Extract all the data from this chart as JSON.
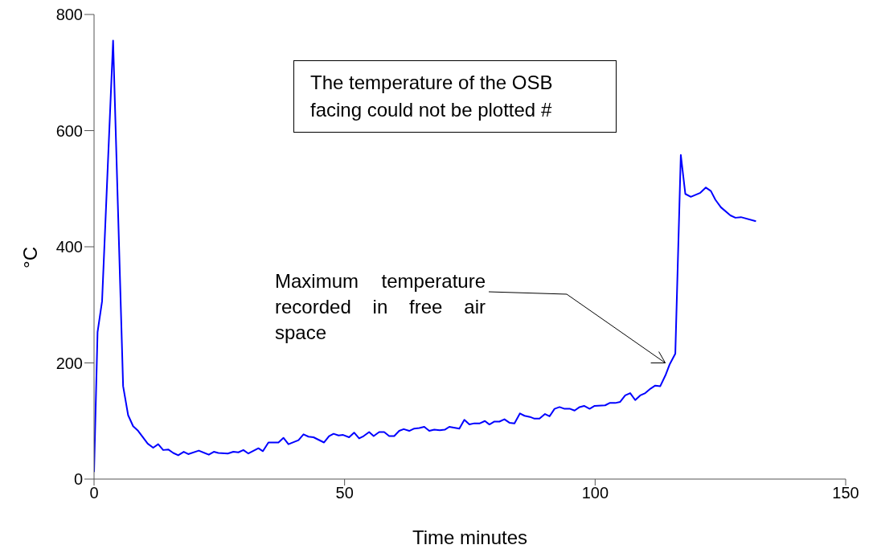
{
  "chart_data": {
    "type": "line",
    "xlabel": "Time minutes",
    "ylabel": "°C",
    "x": [
      0,
      0.7,
      1.6,
      3.8,
      5.8,
      6.8,
      7.8,
      8.8,
      10.7,
      11.8,
      12.8,
      13.8,
      14.8,
      15.8,
      16.8,
      17.9,
      18.8,
      20.9,
      22.9,
      23.9,
      24.8,
      26.7,
      27.8,
      28.8,
      29.8,
      30.8,
      32.8,
      33.7,
      34.8,
      36.8,
      37.8,
      38.8,
      40.8,
      41.8,
      42.8,
      43.8,
      45.9,
      46.9,
      47.8,
      48.8,
      49.7,
      50.9,
      51.9,
      52.9,
      53.8,
      54.9,
      55.8,
      56.9,
      57.9,
      58.9,
      59.9,
      60.9,
      61.8,
      62.9,
      63.9,
      64.9,
      65.9,
      66.9,
      67.9,
      69,
      70,
      70.9,
      72.9,
      73.9,
      74.9,
      75.9,
      77,
      78,
      78.9,
      79.9,
      80.9,
      81.9,
      82.9,
      83.9,
      85,
      85.9,
      87,
      87.9,
      88.9,
      90,
      90.9,
      91.9,
      92.9,
      93.9,
      95,
      95.9,
      96.9,
      97.8,
      98.9,
      99.9,
      102,
      102.9,
      104,
      105,
      106,
      107,
      108,
      109,
      110,
      111.1,
      112,
      113,
      114.1,
      114.9,
      116,
      117.1,
      118,
      119.1,
      121,
      122.1,
      123.1,
      124,
      125.1,
      127,
      128,
      129.1,
      132.1
    ],
    "series": [
      {
        "color": "#0000ff",
        "values": [
          12,
          253,
          306,
          755,
          160,
          110,
          91,
          83,
          61,
          54,
          60,
          50,
          51,
          45,
          41,
          47,
          43,
          49,
          42,
          47,
          45,
          44,
          47,
          46,
          50,
          44,
          53,
          48,
          63,
          63,
          71,
          60,
          67,
          77,
          73,
          72,
          63,
          74,
          78,
          75,
          76,
          72,
          80,
          70,
          74,
          81,
          74,
          81,
          81,
          74,
          74,
          83,
          86,
          83,
          87,
          88,
          90,
          83,
          85,
          84,
          85,
          90,
          87,
          102,
          94,
          96,
          96,
          100,
          94,
          99,
          99,
          103,
          97,
          96,
          113,
          109,
          107,
          104,
          104,
          112,
          108,
          121,
          124,
          121,
          121,
          118,
          124,
          126,
          121,
          126,
          127,
          131,
          131,
          133,
          144,
          148,
          136,
          144,
          148,
          156,
          161,
          160,
          180,
          198,
          216,
          558,
          491,
          486,
          493,
          502,
          496,
          481,
          468,
          454,
          450,
          451,
          444
        ]
      }
    ],
    "xlim": [
      0,
      150
    ],
    "xticks": [
      0,
      50,
      100,
      150
    ],
    "ylim": [
      0,
      800
    ],
    "yticks": [
      0,
      200,
      400,
      600,
      800
    ],
    "grid": false,
    "legend": false,
    "marker": "none",
    "line_style": "solid",
    "annotations": [
      "The temperature of the OSB facing could not be plotted #",
      {
        "text": "Maximum temperature recorded in free air space",
        "x": 114,
        "y": 200
      }
    ]
  }
}
